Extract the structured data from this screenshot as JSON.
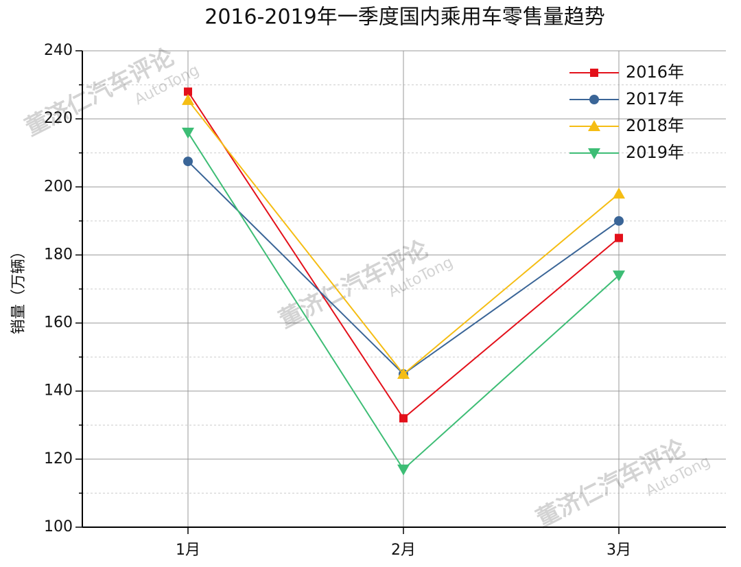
{
  "chart_data": {
    "type": "line",
    "title": "2016-2019年一季度国内乘用车零售量趋势",
    "y_label": "销量（万辆）",
    "watermark": [
      "董济仁汽车评论",
      "AutoTong"
    ],
    "categories": [
      "1月",
      "2月",
      "3月"
    ],
    "series": [
      {
        "name": "2016年",
        "color": "#e3101a",
        "marker": "square",
        "values": [
          228,
          132,
          185
        ]
      },
      {
        "name": "2017年",
        "color": "#3a6597",
        "marker": "circle",
        "values": [
          207.5,
          145,
          190
        ]
      },
      {
        "name": "2018年",
        "color": "#f5bd13",
        "marker": "triangle-up",
        "values": [
          225.5,
          145,
          198
        ]
      },
      {
        "name": "2019年",
        "color": "#3dbd75",
        "marker": "triangle-down",
        "values": [
          216,
          117,
          174
        ]
      }
    ],
    "ylim": [
      100,
      240
    ],
    "yticks": [
      100,
      120,
      140,
      160,
      180,
      200,
      220,
      240
    ],
    "grid": true,
    "legend": "upper right"
  }
}
